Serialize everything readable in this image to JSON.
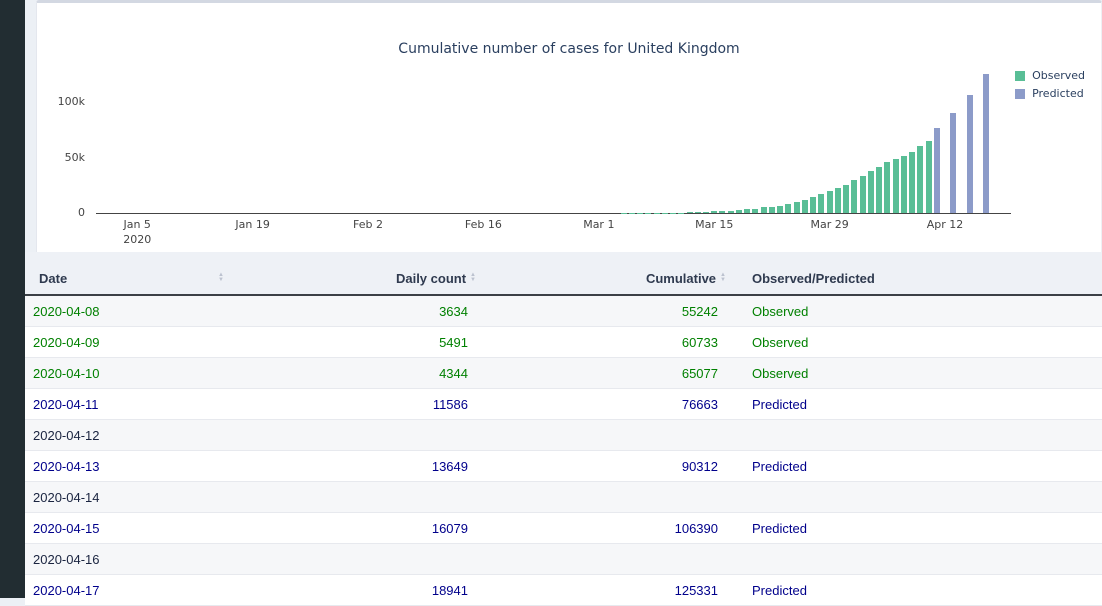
{
  "page": {
    "background_color": "#ecf0f5",
    "sidebar_color": "#222d32"
  },
  "chart_data": {
    "type": "bar",
    "title": "Cumulative number of cases for United Kingdom",
    "xlabel": "",
    "ylabel": "",
    "ylim": [
      0,
      135000
    ],
    "grid": false,
    "legend_position": "top-right",
    "x_range": [
      "2019-12-31",
      "2020-04-20"
    ],
    "y_ticks": [
      {
        "label": "0",
        "value": 0
      },
      {
        "label": "50k",
        "value": 50000
      },
      {
        "label": "100k",
        "value": 100000
      }
    ],
    "x_ticks": [
      {
        "label": "Jan 5",
        "sublabel": "2020",
        "date": "2020-01-05"
      },
      {
        "label": "Jan 19",
        "date": "2020-01-19"
      },
      {
        "label": "Feb 2",
        "date": "2020-02-02"
      },
      {
        "label": "Feb 16",
        "date": "2020-02-16"
      },
      {
        "label": "Mar 1",
        "date": "2020-03-01"
      },
      {
        "label": "Mar 15",
        "date": "2020-03-15"
      },
      {
        "label": "Mar 29",
        "date": "2020-03-29"
      },
      {
        "label": "Apr 12",
        "date": "2020-04-12"
      }
    ],
    "series": [
      {
        "name": "Observed",
        "color": "#59be96",
        "points": [
          [
            "2020-02-28",
            20
          ],
          [
            "2020-02-29",
            23
          ],
          [
            "2020-03-01",
            36
          ],
          [
            "2020-03-02",
            40
          ],
          [
            "2020-03-03",
            51
          ],
          [
            "2020-03-04",
            87
          ],
          [
            "2020-03-05",
            116
          ],
          [
            "2020-03-06",
            163
          ],
          [
            "2020-03-07",
            206
          ],
          [
            "2020-03-08",
            273
          ],
          [
            "2020-03-09",
            321
          ],
          [
            "2020-03-10",
            382
          ],
          [
            "2020-03-11",
            456
          ],
          [
            "2020-03-12",
            590
          ],
          [
            "2020-03-13",
            798
          ],
          [
            "2020-03-14",
            1140
          ],
          [
            "2020-03-15",
            1391
          ],
          [
            "2020-03-16",
            1543
          ],
          [
            "2020-03-17",
            1950
          ],
          [
            "2020-03-18",
            2626
          ],
          [
            "2020-03-19",
            3269
          ],
          [
            "2020-03-20",
            3983
          ],
          [
            "2020-03-21",
            5018
          ],
          [
            "2020-03-22",
            5683
          ],
          [
            "2020-03-23",
            6650
          ],
          [
            "2020-03-24",
            8077
          ],
          [
            "2020-03-25",
            9529
          ],
          [
            "2020-03-26",
            11658
          ],
          [
            "2020-03-27",
            14543
          ],
          [
            "2020-03-28",
            17089
          ],
          [
            "2020-03-29",
            19522
          ],
          [
            "2020-03-30",
            22141
          ],
          [
            "2020-03-31",
            25150
          ],
          [
            "2020-04-01",
            29474
          ],
          [
            "2020-04-02",
            33718
          ],
          [
            "2020-04-03",
            38168
          ],
          [
            "2020-04-04",
            41903
          ],
          [
            "2020-04-05",
            45640
          ],
          [
            "2020-04-06",
            48436
          ],
          [
            "2020-04-07",
            51608
          ],
          [
            "2020-04-08",
            55242
          ],
          [
            "2020-04-09",
            60733
          ],
          [
            "2020-04-10",
            65077
          ]
        ]
      },
      {
        "name": "Predicted",
        "color": "#8c9bc9",
        "points": [
          [
            "2020-04-11",
            76663
          ],
          [
            "2020-04-13",
            90312
          ],
          [
            "2020-04-15",
            106390
          ],
          [
            "2020-04-17",
            125331
          ]
        ]
      }
    ]
  },
  "table": {
    "columns": [
      {
        "label": "Date",
        "sortable": true
      },
      {
        "label": "Daily count",
        "sortable": true
      },
      {
        "label": "Cumulative",
        "sortable": true
      },
      {
        "label": "Observed/Predicted",
        "sortable": false
      }
    ],
    "status_text_colors": {
      "observed": "#008000",
      "predicted": "#00008b",
      "empty": "#1a2440"
    },
    "rows": [
      {
        "date": "2020-04-08",
        "daily_count": "3634",
        "cumulative": "55242",
        "status": "Observed"
      },
      {
        "date": "2020-04-09",
        "daily_count": "5491",
        "cumulative": "60733",
        "status": "Observed"
      },
      {
        "date": "2020-04-10",
        "daily_count": "4344",
        "cumulative": "65077",
        "status": "Observed"
      },
      {
        "date": "2020-04-11",
        "daily_count": "11586",
        "cumulative": "76663",
        "status": "Predicted"
      },
      {
        "date": "2020-04-12",
        "daily_count": "",
        "cumulative": "",
        "status": ""
      },
      {
        "date": "2020-04-13",
        "daily_count": "13649",
        "cumulative": "90312",
        "status": "Predicted"
      },
      {
        "date": "2020-04-14",
        "daily_count": "",
        "cumulative": "",
        "status": ""
      },
      {
        "date": "2020-04-15",
        "daily_count": "16079",
        "cumulative": "106390",
        "status": "Predicted"
      },
      {
        "date": "2020-04-16",
        "daily_count": "",
        "cumulative": "",
        "status": ""
      },
      {
        "date": "2020-04-17",
        "daily_count": "18941",
        "cumulative": "125331",
        "status": "Predicted"
      }
    ]
  }
}
